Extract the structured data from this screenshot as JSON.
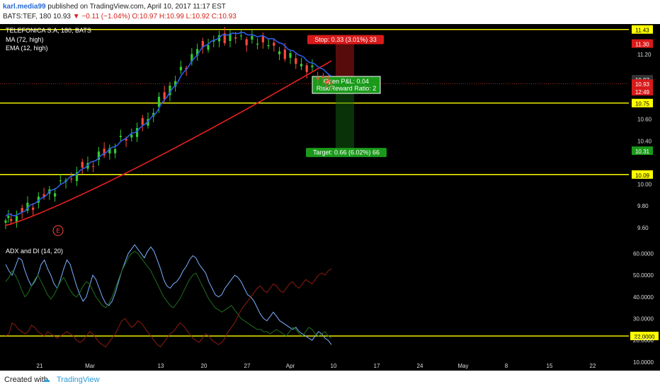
{
  "header": {
    "author": "karl.media99",
    "published": " published on TradingView.com, April 10, 2017 11:17 EST",
    "symbol": "BATS:TEF, 180",
    "last": "10.93",
    "change": "▼ −0.11 (−1.04%)",
    "open": "O:10.97",
    "high": "H:10.99",
    "low": "L:10.92",
    "close": "C:10.93"
  },
  "footer": {
    "created": "Created with",
    "brand": "TradingView"
  },
  "colors": {
    "up": "#33cc33",
    "down": "#ff4a3a",
    "ma": "#e8201d",
    "ema": "#2b5ce6",
    "level": "#ffff00",
    "adx": "#7ab0ff",
    "di_plus": "#1f6e1f",
    "di_minus": "#8c1c10",
    "stop_bg": "#d81a1a",
    "target_bg": "#1a9a1a"
  },
  "chart_data": [
    {
      "type": "candlestick",
      "title": "TELEFONICA S.A, 180, BATS",
      "indicators": [
        "MA (72, high)",
        "EMA (12, high)"
      ],
      "y_axis": {
        "ticks": [
          "11.20",
          "10.60",
          "10.40",
          "10.00",
          "9.80",
          "9.60"
        ],
        "ylim": [
          9.52,
          11.48
        ]
      },
      "x_axis": {
        "ticks": [
          "21",
          "Mar",
          "13",
          "20",
          "27",
          "Apr",
          "10",
          "17",
          "24",
          "May",
          "8",
          "15",
          "22"
        ]
      },
      "horizontal_levels": [
        {
          "value": 11.43,
          "label": "11.43"
        },
        {
          "value": 10.75,
          "label": "10.75"
        },
        {
          "value": 10.09,
          "label": "10.09"
        }
      ],
      "price_labels": [
        {
          "value": 11.3,
          "label": "11.30",
          "color": "#d81a1a"
        },
        {
          "value": 10.97,
          "label": "10.97",
          "color": "#333333"
        },
        {
          "value": 10.93,
          "label": "10.93",
          "color": "#d81a1a"
        },
        {
          "value": 10.86,
          "label": "12:49",
          "color": "#d81a1a"
        },
        {
          "value": 10.31,
          "label": "10.31",
          "color": "#1a9a1a"
        }
      ],
      "position": {
        "entry": 10.97,
        "stop": 11.3,
        "target": 10.31,
        "stop_label": "Stop: 0.33 (3.01%) 33",
        "target_label": "Target: 0.66 (6.02%) 66",
        "pnl_label": "Open P&L: 0.04",
        "rr_label": "Risk/Reward Ratio: 2"
      },
      "earnings_marker": "E",
      "ohlc_series_description": "Rising 3-hour bars from ~9.65 (mid Feb) to ~11.40 (late Mar), pulling back to ~10.93 by Apr 10."
    },
    {
      "type": "line",
      "title": "ADX and DI (14, 20)",
      "y_axis": {
        "ticks": [
          "60.0000",
          "50.0000",
          "40.0000",
          "30.0000",
          "20.0000",
          "10.0000"
        ],
        "ylim": [
          8,
          66
        ]
      },
      "horizontal_levels": [
        {
          "value": 22.0,
          "label": "22.0000"
        }
      ],
      "series": [
        {
          "key": "adx",
          "values": [
            55,
            52,
            50,
            54,
            58,
            57,
            52,
            48,
            45,
            47,
            50,
            55,
            57,
            53,
            50,
            46,
            44,
            48,
            53,
            57,
            55,
            50,
            45,
            41,
            38,
            40,
            45,
            50,
            48,
            44,
            40,
            37,
            36,
            38,
            42,
            47,
            52,
            56,
            60,
            62,
            64,
            62,
            60,
            58,
            61,
            63,
            61,
            57,
            53,
            48,
            45,
            44,
            46,
            47,
            49,
            52,
            54,
            57,
            59,
            58,
            55,
            53,
            51,
            47,
            44,
            41,
            40,
            41,
            44,
            46,
            48,
            50,
            49,
            47,
            44,
            41,
            40,
            38,
            35,
            32,
            30,
            29,
            31,
            33,
            31,
            29,
            28,
            27,
            26,
            25,
            26,
            24,
            23,
            22,
            21,
            20,
            22,
            24,
            23,
            21,
            20,
            18
          ]
        },
        {
          "key": "di_plus",
          "values": [
            47,
            49,
            52,
            50,
            47,
            43,
            40,
            42,
            45,
            48,
            50,
            47,
            44,
            41,
            39,
            41,
            44,
            47,
            49,
            46,
            43,
            41,
            40,
            42,
            45,
            47,
            46,
            43,
            40,
            38,
            36,
            35,
            37,
            40,
            44,
            48,
            52,
            55,
            58,
            60,
            61,
            60,
            58,
            56,
            54,
            52,
            49,
            46,
            43,
            40,
            38,
            36,
            35,
            37,
            39,
            42,
            45,
            48,
            50,
            51,
            48,
            45,
            42,
            39,
            37,
            35,
            34,
            33,
            34,
            35,
            36,
            34,
            32,
            30,
            29,
            28,
            27,
            26,
            25,
            25,
            24,
            24,
            23,
            24,
            25,
            24,
            23,
            22,
            24,
            26,
            25,
            23,
            22,
            24,
            26,
            25,
            23,
            22,
            23,
            24,
            22,
            21
          ]
        },
        {
          "key": "di_minus",
          "values": [
            22,
            23,
            28,
            27,
            25,
            24,
            23,
            24,
            27,
            26,
            24,
            23,
            22,
            24,
            23,
            22,
            21,
            22,
            23,
            24,
            23,
            22,
            20,
            19,
            20,
            22,
            24,
            23,
            21,
            19,
            18,
            17,
            19,
            21,
            23,
            26,
            29,
            30,
            28,
            26,
            27,
            29,
            28,
            26,
            24,
            22,
            20,
            18,
            17,
            19,
            21,
            23,
            24,
            26,
            28,
            27,
            25,
            23,
            21,
            20,
            19,
            21,
            23,
            22,
            20,
            19,
            18,
            19,
            21,
            24,
            26,
            28,
            31,
            34,
            36,
            38,
            40,
            42,
            44,
            45,
            43,
            42,
            44,
            46,
            45,
            43,
            42,
            44,
            46,
            47,
            45,
            44,
            46,
            48,
            47,
            46,
            48,
            50,
            51,
            50,
            52,
            53
          ]
        }
      ]
    }
  ]
}
